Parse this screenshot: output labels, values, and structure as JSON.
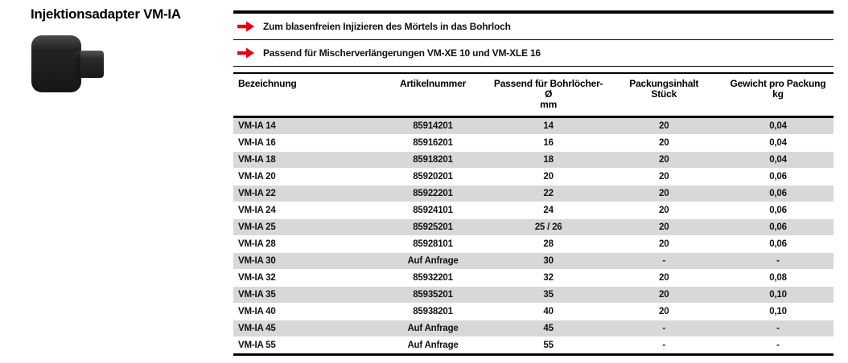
{
  "page": {
    "title": "Injektionsadapter VM-IA"
  },
  "colors": {
    "accent_red": "#e2001a",
    "row_gray": "#d8d8d8",
    "rule_black": "#000000"
  },
  "icons": {
    "bullet": "arrow-right-icon",
    "product": "injection-adapter-photo"
  },
  "features": [
    {
      "text": "Zum blasenfreien Injizieren des Mörtels in das Bohrloch"
    },
    {
      "text": "Passend für Mischerverlängerungen VM-XE 10 und VM-XLE 16"
    }
  ],
  "table": {
    "headers": [
      {
        "key": "bezeichnung",
        "line1": "Bezeichnung",
        "line2": ""
      },
      {
        "key": "artikelnummer",
        "line1": "Artikelnummer",
        "line2": ""
      },
      {
        "key": "bohrloecher",
        "line1": "Passend für Bohrlöcher-Ø",
        "line2": "mm"
      },
      {
        "key": "packungsinhalt",
        "line1": "Packungsinhalt",
        "line2": "Stück"
      },
      {
        "key": "gewicht",
        "line1": "Gewicht pro Packung",
        "line2": "kg"
      }
    ],
    "rows": [
      [
        "VM-IA 14",
        "85914201",
        "14",
        "20",
        "0,04"
      ],
      [
        "VM-IA 16",
        "85916201",
        "16",
        "20",
        "0,04"
      ],
      [
        "VM-IA 18",
        "85918201",
        "18",
        "20",
        "0,04"
      ],
      [
        "VM-IA 20",
        "85920201",
        "20",
        "20",
        "0,06"
      ],
      [
        "VM-IA 22",
        "85922201",
        "22",
        "20",
        "0,06"
      ],
      [
        "VM-IA 24",
        "85924101",
        "24",
        "20",
        "0,06"
      ],
      [
        "VM-IA 25",
        "85925201",
        "25 / 26",
        "20",
        "0,06"
      ],
      [
        "VM-IA 28",
        "85928101",
        "28",
        "20",
        "0,06"
      ],
      [
        "VM-IA 30",
        "Auf Anfrage",
        "30",
        "-",
        "-"
      ],
      [
        "VM-IA 32",
        "85932201",
        "32",
        "20",
        "0,08"
      ],
      [
        "VM-IA 35",
        "85935201",
        "35",
        "20",
        "0,10"
      ],
      [
        "VM-IA 40",
        "85938201",
        "40",
        "20",
        "0,10"
      ],
      [
        "VM-IA 45",
        "Auf Anfrage",
        "45",
        "-",
        "-"
      ],
      [
        "VM-IA 55",
        "Auf Anfrage",
        "55",
        "-",
        "-"
      ]
    ]
  }
}
